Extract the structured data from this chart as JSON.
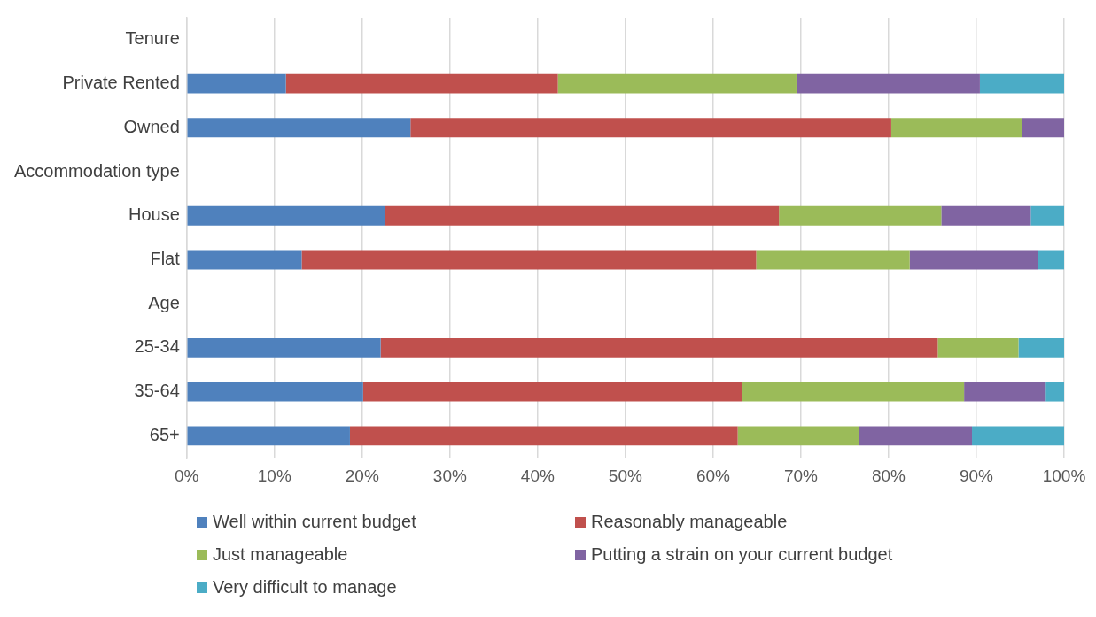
{
  "chart_data": {
    "type": "bar",
    "orientation": "horizontal",
    "stacked": true,
    "categories": [
      "Tenure",
      "Private Rented",
      "Owned",
      "Accommodation type",
      "House",
      "Flat",
      "Age",
      "25-34",
      "35-64",
      "65+"
    ],
    "series": [
      {
        "name": "Well within current budget",
        "color": "#4f81bd",
        "values": [
          null,
          11.3,
          25.5,
          null,
          22.6,
          13.1,
          null,
          22.1,
          20.1,
          18.6
        ]
      },
      {
        "name": "Reasonably manageable",
        "color": "#c0504d",
        "values": [
          null,
          31.0,
          54.8,
          null,
          44.9,
          51.8,
          null,
          63.5,
          43.2,
          44.2
        ]
      },
      {
        "name": "Just manageable",
        "color": "#9bbb59",
        "values": [
          null,
          27.2,
          14.9,
          null,
          18.5,
          17.5,
          null,
          9.2,
          25.3,
          13.8
        ]
      },
      {
        "name": "Putting a strain on your current budget",
        "color": "#8064a2",
        "values": [
          null,
          20.9,
          4.8,
          null,
          10.2,
          14.6,
          null,
          0,
          9.3,
          12.9
        ]
      },
      {
        "name": "Very difficult to manage",
        "color": "#4bacc6",
        "values": [
          null,
          9.6,
          0,
          null,
          3.8,
          3.0,
          null,
          5.2,
          2.1,
          10.5
        ]
      }
    ],
    "xlim": [
      0,
      100
    ],
    "xticks": [
      {
        "value": 0,
        "label": "0%"
      },
      {
        "value": 10,
        "label": "10%"
      },
      {
        "value": 20,
        "label": "20%"
      },
      {
        "value": 30,
        "label": "30%"
      },
      {
        "value": 40,
        "label": "40%"
      },
      {
        "value": 50,
        "label": "50%"
      },
      {
        "value": 60,
        "label": "60%"
      },
      {
        "value": 70,
        "label": "70%"
      },
      {
        "value": 80,
        "label": "80%"
      },
      {
        "value": 90,
        "label": "90%"
      },
      {
        "value": 100,
        "label": "100%"
      }
    ],
    "grid": "x",
    "legend": "bottom"
  }
}
